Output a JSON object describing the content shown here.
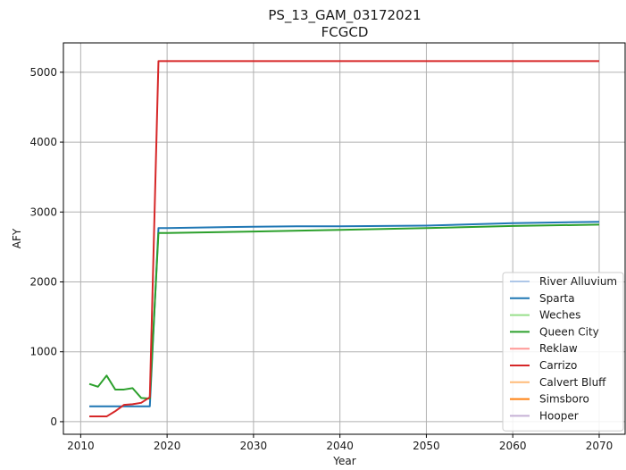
{
  "chart_data": {
    "type": "line",
    "title": "PS_13_GAM_03172021",
    "subtitle": "FCGCD",
    "xlabel": "Year",
    "ylabel": "AFY",
    "xlim": [
      2008,
      2073
    ],
    "ylim": [
      -180,
      5420
    ],
    "x_ticks": [
      2010,
      2020,
      2030,
      2040,
      2050,
      2060,
      2070
    ],
    "y_ticks": [
      0,
      1000,
      2000,
      3000,
      4000,
      5000
    ],
    "grid": true,
    "legend_position": "lower-right",
    "series": [
      {
        "name": "River Alluvium",
        "color": "#aec7e8",
        "x": [],
        "y": []
      },
      {
        "name": "Sparta",
        "color": "#1f77b4",
        "x": [
          2011,
          2012,
          2013,
          2014,
          2015,
          2016,
          2017,
          2018,
          2019,
          2020,
          2030,
          2035,
          2040,
          2050,
          2060,
          2070
        ],
        "y": [
          220,
          220,
          220,
          220,
          220,
          220,
          220,
          220,
          2770,
          2770,
          2790,
          2795,
          2795,
          2805,
          2840,
          2860
        ]
      },
      {
        "name": "Weches",
        "color": "#98df8a",
        "x": [],
        "y": []
      },
      {
        "name": "Queen City",
        "color": "#2ca02c",
        "x": [
          2011,
          2012,
          2013,
          2014,
          2015,
          2016,
          2017,
          2018,
          2019,
          2020,
          2030,
          2040,
          2050,
          2060,
          2070
        ],
        "y": [
          540,
          500,
          660,
          460,
          460,
          480,
          340,
          330,
          2700,
          2700,
          2720,
          2745,
          2770,
          2800,
          2820
        ]
      },
      {
        "name": "Reklaw",
        "color": "#ff9896",
        "x": [],
        "y": []
      },
      {
        "name": "Carrizo",
        "color": "#d62728",
        "x": [
          2011,
          2012,
          2013,
          2014,
          2015,
          2016,
          2017,
          2018,
          2019,
          2020,
          2030,
          2040,
          2050,
          2060,
          2070
        ],
        "y": [
          75,
          75,
          75,
          150,
          240,
          250,
          270,
          350,
          5160,
          5160,
          5160,
          5160,
          5160,
          5160,
          5160
        ]
      },
      {
        "name": "Calvert Bluff",
        "color": "#ffbb78",
        "x": [],
        "y": []
      },
      {
        "name": "Simsboro",
        "color": "#ff7f0e",
        "x": [],
        "y": []
      },
      {
        "name": "Hooper",
        "color": "#c5b0d5",
        "x": [],
        "y": []
      }
    ]
  }
}
